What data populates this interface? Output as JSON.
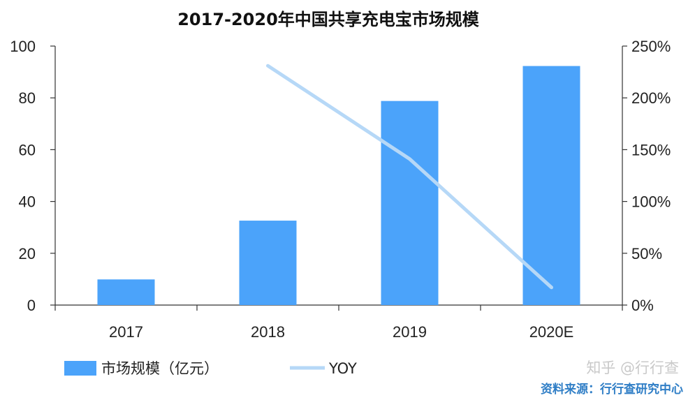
{
  "chart_data": {
    "type": "bar",
    "title": "2017-2020年中国共享充电宝市场规模",
    "categories": [
      "2017",
      "2018",
      "2019",
      "2020E"
    ],
    "series": [
      {
        "name": "市场规模（亿元）",
        "type": "bar",
        "axis": "left",
        "color": "#4ba3fa",
        "values": [
          9.9,
          32.6,
          78.8,
          92.3
        ]
      },
      {
        "name": "YOY",
        "type": "line",
        "axis": "right",
        "color": "#b6d8f7",
        "values": [
          null,
          2.31,
          1.41,
          0.17
        ]
      }
    ],
    "left_axis": {
      "min": 0,
      "max": 100,
      "ticks": [
        "0",
        "20",
        "40",
        "60",
        "80",
        "100"
      ]
    },
    "right_axis": {
      "min": 0,
      "max": 2.5,
      "ticks": [
        "0%",
        "50%",
        "100%",
        "150%",
        "200%",
        "250%"
      ]
    },
    "xlabel": "",
    "ylabel": "",
    "legend_position": "bottom-left"
  },
  "source_note": "资料来源：行行查研究中心",
  "watermark": "知乎 @行行查"
}
